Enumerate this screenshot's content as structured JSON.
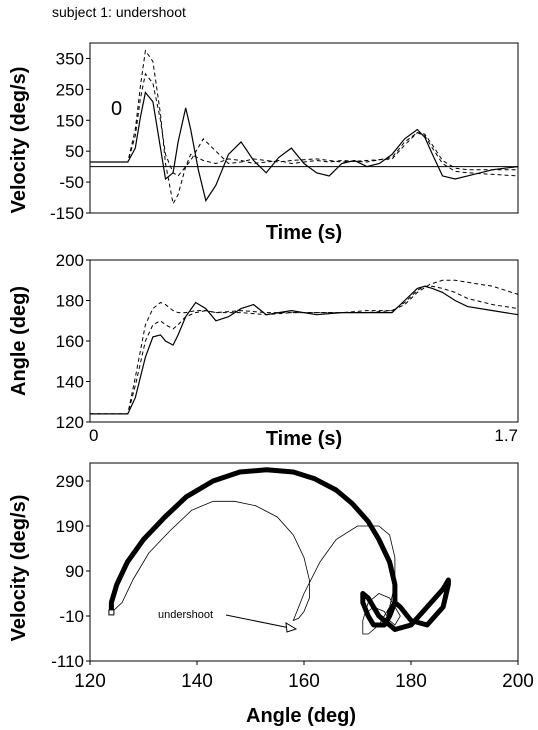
{
  "figure_title": "subject 1: undershoot",
  "chart_data": [
    {
      "type": "line",
      "xlabel": "Time (s)",
      "ylabel": "Velocity (deg/s)",
      "xlim": [
        0,
        1.7
      ],
      "ylim": [
        -150,
        400
      ],
      "ytick_labels": [
        "350",
        "250",
        "150",
        "50",
        "-50",
        "-150"
      ],
      "yticks": [
        350,
        250,
        150,
        50,
        -50,
        -150
      ],
      "annotation": "0",
      "zero_line": 0,
      "series": [
        {
          "style": "solid",
          "x": [
            0,
            0.1,
            0.15,
            0.18,
            0.2,
            0.22,
            0.25,
            0.28,
            0.3,
            0.33,
            0.35,
            0.38,
            0.4,
            0.43,
            0.46,
            0.5,
            0.55,
            0.6,
            0.65,
            0.7,
            0.75,
            0.8,
            0.85,
            0.9,
            0.95,
            1.0,
            1.05,
            1.1,
            1.15,
            1.2,
            1.25,
            1.3,
            1.33,
            1.36,
            1.4,
            1.45,
            1.5,
            1.6,
            1.7
          ],
          "y": [
            15,
            15,
            15,
            60,
            160,
            240,
            210,
            60,
            -40,
            -20,
            80,
            190,
            120,
            -10,
            -110,
            -60,
            40,
            80,
            20,
            -20,
            30,
            60,
            10,
            -20,
            -30,
            10,
            20,
            0,
            10,
            40,
            90,
            120,
            95,
            40,
            -30,
            -40,
            -30,
            -10,
            0
          ]
        },
        {
          "style": "dashed",
          "x": [
            0,
            0.1,
            0.15,
            0.18,
            0.2,
            0.22,
            0.25,
            0.28,
            0.3,
            0.33,
            0.35,
            0.38,
            0.4,
            0.45,
            0.5,
            0.55,
            0.6,
            0.65,
            0.7,
            0.75,
            0.8,
            0.85,
            0.9,
            0.95,
            1.0,
            1.1,
            1.2,
            1.25,
            1.3,
            1.33,
            1.36,
            1.4,
            1.45,
            1.5,
            1.6,
            1.7
          ],
          "y": [
            15,
            15,
            15,
            120,
            260,
            375,
            340,
            170,
            10,
            -120,
            -90,
            0,
            40,
            20,
            10,
            25,
            20,
            10,
            15,
            20,
            10,
            15,
            20,
            15,
            20,
            15,
            30,
            80,
            110,
            100,
            60,
            10,
            -15,
            -20,
            -25,
            -30
          ]
        },
        {
          "style": "dashed",
          "x": [
            0,
            0.1,
            0.15,
            0.18,
            0.2,
            0.22,
            0.25,
            0.28,
            0.3,
            0.33,
            0.35,
            0.4,
            0.45,
            0.5,
            0.55,
            0.6,
            0.65,
            0.7,
            0.75,
            0.8,
            0.9,
            1.0,
            1.1,
            1.2,
            1.25,
            1.3,
            1.33,
            1.36,
            1.4,
            1.45,
            1.5,
            1.6,
            1.7
          ],
          "y": [
            15,
            15,
            15,
            100,
            220,
            300,
            270,
            150,
            40,
            -20,
            -30,
            20,
            90,
            50,
            10,
            15,
            25,
            20,
            15,
            20,
            25,
            15,
            20,
            25,
            70,
            110,
            105,
            70,
            20,
            -5,
            -10,
            -10,
            -10
          ]
        }
      ]
    },
    {
      "type": "line",
      "xlabel": "Time (s)",
      "ylabel": "Angle (deg)",
      "xlim": [
        0,
        1.7
      ],
      "ylim": [
        120,
        200
      ],
      "xtick_labels": [
        "0",
        "1.7"
      ],
      "ytick_labels": [
        "200",
        "180",
        "160",
        "140",
        "120"
      ],
      "yticks": [
        200,
        180,
        160,
        140,
        120
      ],
      "series": [
        {
          "style": "solid",
          "x": [
            0,
            0.15,
            0.18,
            0.22,
            0.25,
            0.28,
            0.3,
            0.33,
            0.35,
            0.38,
            0.42,
            0.46,
            0.5,
            0.55,
            0.6,
            0.65,
            0.7,
            0.75,
            0.8,
            0.9,
            1.0,
            1.1,
            1.2,
            1.25,
            1.3,
            1.33,
            1.36,
            1.4,
            1.45,
            1.5,
            1.6,
            1.7
          ],
          "y": [
            124,
            124,
            132,
            152,
            162,
            163,
            160,
            158,
            163,
            172,
            179,
            176,
            170,
            172,
            176,
            178,
            173,
            174,
            175,
            173,
            174,
            174,
            174,
            180,
            186,
            187,
            186,
            184,
            180,
            177,
            175,
            173
          ]
        },
        {
          "style": "dashed",
          "x": [
            0,
            0.15,
            0.18,
            0.22,
            0.25,
            0.28,
            0.3,
            0.33,
            0.35,
            0.38,
            0.42,
            0.46,
            0.5,
            0.6,
            0.7,
            0.8,
            0.9,
            1.0,
            1.1,
            1.2,
            1.25,
            1.3,
            1.35,
            1.4,
            1.45,
            1.5,
            1.6,
            1.7
          ],
          "y": [
            124,
            124,
            142,
            168,
            176,
            179,
            178,
            175,
            174,
            174,
            175,
            175,
            174,
            175,
            174,
            174,
            174,
            174,
            175,
            175,
            178,
            184,
            188,
            190,
            190,
            189,
            187,
            183
          ]
        },
        {
          "style": "dashed",
          "x": [
            0,
            0.15,
            0.18,
            0.22,
            0.25,
            0.28,
            0.3,
            0.33,
            0.35,
            0.38,
            0.42,
            0.46,
            0.5,
            0.6,
            0.7,
            0.8,
            0.9,
            1.0,
            1.1,
            1.2,
            1.25,
            1.3,
            1.33,
            1.36,
            1.4,
            1.45,
            1.5,
            1.6,
            1.7
          ],
          "y": [
            124,
            124,
            138,
            160,
            168,
            170,
            168,
            166,
            168,
            172,
            174,
            175,
            174,
            174,
            173,
            174,
            174,
            174,
            174,
            175,
            179,
            185,
            187,
            187,
            186,
            184,
            181,
            178,
            176
          ]
        }
      ]
    },
    {
      "type": "line",
      "xlabel": "Angle (deg)",
      "ylabel": "Velocity (deg/s)",
      "xlim": [
        120,
        200
      ],
      "ylim": [
        -110,
        330
      ],
      "xtick_labels": [
        "120",
        "140",
        "160",
        "180",
        "200"
      ],
      "xticks": [
        120,
        140,
        160,
        180,
        200
      ],
      "ytick_labels": [
        "290",
        "190",
        "90",
        "-10",
        "-110"
      ],
      "yticks": [
        290,
        190,
        90,
        -10,
        -110
      ],
      "annotation": "undershoot",
      "series": [
        {
          "style": "thick",
          "x": [
            124,
            124,
            125,
            127,
            130,
            134,
            138,
            143,
            148,
            153,
            158,
            162,
            166,
            169,
            172,
            174,
            176,
            177,
            177,
            176,
            175,
            173,
            172,
            171,
            171,
            172,
            174,
            177,
            180,
            183,
            186,
            187,
            187,
            186,
            183,
            180,
            178,
            177,
            176,
            176
          ],
          "y": [
            -2,
            20,
            60,
            110,
            160,
            210,
            255,
            290,
            310,
            315,
            310,
            295,
            270,
            240,
            200,
            160,
            110,
            60,
            20,
            -10,
            -30,
            -30,
            -10,
            20,
            40,
            30,
            -10,
            -40,
            -30,
            10,
            50,
            70,
            60,
            10,
            -30,
            -20,
            10,
            20,
            0,
            -10
          ]
        },
        {
          "style": "thin",
          "x": [
            124,
            126,
            128,
            131,
            135,
            139,
            143,
            147,
            151,
            155,
            158,
            160,
            161,
            161,
            160,
            159,
            158,
            160,
            163,
            166,
            170,
            174,
            176,
            177,
            177,
            176,
            174,
            172,
            171,
            171,
            172,
            174,
            176,
            178,
            177,
            176,
            175,
            173,
            172
          ],
          "y": [
            -2,
            20,
            70,
            130,
            180,
            225,
            245,
            245,
            235,
            210,
            170,
            120,
            70,
            30,
            0,
            -15,
            -20,
            40,
            110,
            160,
            190,
            190,
            170,
            120,
            60,
            10,
            -30,
            -50,
            -50,
            -20,
            20,
            40,
            30,
            -10,
            -30,
            -20,
            0,
            10,
            0
          ]
        }
      ]
    }
  ]
}
